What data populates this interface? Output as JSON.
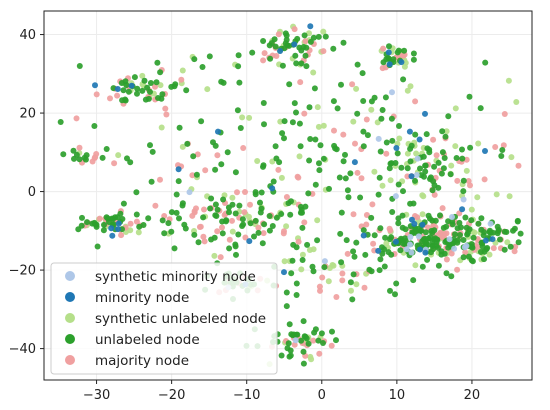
{
  "chart_data": {
    "type": "scatter",
    "title": "",
    "xlabel": "",
    "ylabel": "",
    "xlim": [
      -37,
      28
    ],
    "ylim": [
      -48,
      46
    ],
    "xticks": [
      -30,
      -20,
      -10,
      0,
      10,
      20
    ],
    "yticks": [
      -40,
      -20,
      0,
      20,
      40
    ],
    "grid": true,
    "legend_position": "lower-left",
    "series": [
      {
        "name": "synthetic minority node",
        "color": "#aec7e8",
        "seed": 11,
        "count": 22
      },
      {
        "name": "minority node",
        "color": "#1f77b4",
        "seed": 23,
        "count": 38
      },
      {
        "name": "synthetic unlabeled node",
        "color": "#b5df8a",
        "seed": 37,
        "count": 210
      },
      {
        "name": "unlabeled node",
        "color": "#2ca02c",
        "seed": 51,
        "count": 620
      },
      {
        "name": "majority node",
        "color": "#f0a0a0",
        "seed": 73,
        "count": 260
      }
    ],
    "clusters": [
      {
        "cx": -4,
        "cy": 37,
        "sx": 2.5,
        "sy": 2.5,
        "w": 3
      },
      {
        "cx": 10,
        "cy": 34,
        "sx": 1.0,
        "sy": 1.5,
        "w": 1.5
      },
      {
        "cx": 17,
        "cy": -12,
        "sx": 5.5,
        "sy": 3.0,
        "w": 12
      },
      {
        "cx": -24,
        "cy": 26,
        "sx": 2.5,
        "sy": 2.0,
        "w": 2
      },
      {
        "cx": -28,
        "cy": -8,
        "sx": 2.0,
        "sy": 1.2,
        "w": 1.5
      },
      {
        "cx": -3,
        "cy": -38,
        "sx": 2.2,
        "sy": 2.5,
        "w": 2.5
      },
      {
        "cx": -11,
        "cy": -23,
        "sx": 2.0,
        "sy": 1.8,
        "w": 1.2
      },
      {
        "cx": -31,
        "cy": 9,
        "sx": 2.2,
        "sy": 1.2,
        "w": 1
      },
      {
        "cx": 0,
        "cy": 10,
        "sx": 13,
        "sy": 14,
        "w": 10
      },
      {
        "cx": 15,
        "cy": 6,
        "sx": 5,
        "sy": 5,
        "w": 4
      },
      {
        "cx": -12,
        "cy": -8,
        "sx": 6,
        "sy": 4,
        "w": 4
      },
      {
        "cx": 2,
        "cy": -20,
        "sx": 5,
        "sy": 4,
        "w": 2
      }
    ],
    "xtick_labels": [
      "−30",
      "−20",
      "−10",
      "0",
      "10",
      "20"
    ],
    "ytick_labels": [
      "−40",
      "−20",
      "0",
      "20",
      "40"
    ]
  }
}
